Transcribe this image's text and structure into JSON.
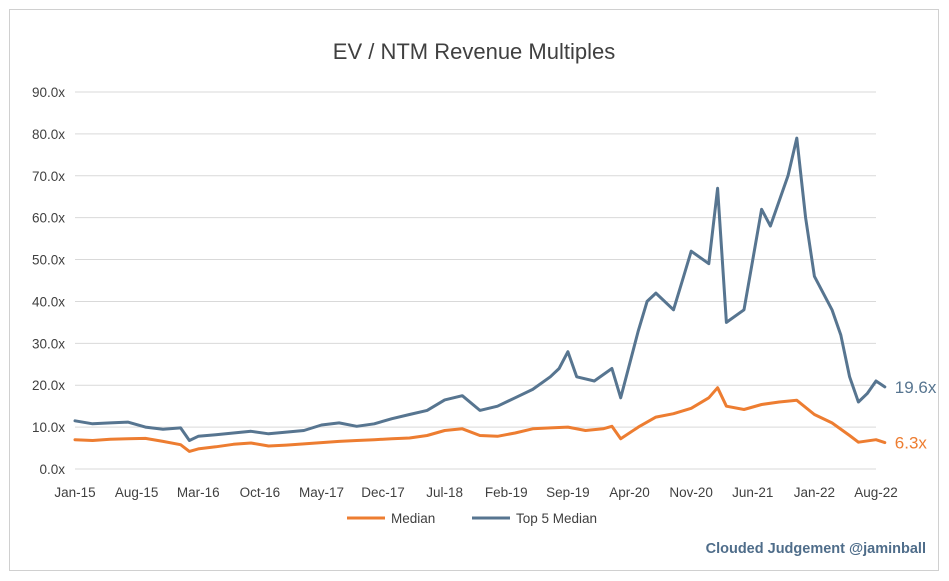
{
  "chart_data": {
    "type": "line",
    "title": "EV / NTM Revenue Multiples",
    "xlabel": "",
    "ylabel": "",
    "ylim": [
      0,
      90
    ],
    "y_ticks": [
      "0.0x",
      "10.0x",
      "20.0x",
      "30.0x",
      "40.0x",
      "50.0x",
      "60.0x",
      "70.0x",
      "80.0x",
      "90.0x"
    ],
    "x_ticks": [
      "Jan-15",
      "Aug-15",
      "Mar-16",
      "Oct-16",
      "May-17",
      "Dec-17",
      "Jul-18",
      "Feb-19",
      "Sep-19",
      "Apr-20",
      "Nov-20",
      "Jun-21",
      "Jan-22",
      "Aug-22"
    ],
    "grid": true,
    "legend_position": "bottom",
    "series": [
      {
        "name": "Median",
        "color": "#ED7D31",
        "end_label": "6.3x",
        "points": [
          [
            "2015-01",
            7.0
          ],
          [
            "2015-03",
            6.8
          ],
          [
            "2015-05",
            7.1
          ],
          [
            "2015-07",
            7.2
          ],
          [
            "2015-09",
            7.3
          ],
          [
            "2015-11",
            6.6
          ],
          [
            "2016-01",
            5.8
          ],
          [
            "2016-02",
            4.2
          ],
          [
            "2016-03",
            4.8
          ],
          [
            "2016-05",
            5.3
          ],
          [
            "2016-07",
            5.9
          ],
          [
            "2016-09",
            6.2
          ],
          [
            "2016-11",
            5.5
          ],
          [
            "2017-01",
            5.7
          ],
          [
            "2017-03",
            6.0
          ],
          [
            "2017-05",
            6.3
          ],
          [
            "2017-07",
            6.6
          ],
          [
            "2017-09",
            6.8
          ],
          [
            "2017-11",
            7.0
          ],
          [
            "2018-01",
            7.2
          ],
          [
            "2018-03",
            7.4
          ],
          [
            "2018-05",
            8.0
          ],
          [
            "2018-07",
            9.2
          ],
          [
            "2018-09",
            9.6
          ],
          [
            "2018-11",
            8.0
          ],
          [
            "2019-01",
            7.8
          ],
          [
            "2019-03",
            8.6
          ],
          [
            "2019-05",
            9.6
          ],
          [
            "2019-07",
            9.8
          ],
          [
            "2019-09",
            10.0
          ],
          [
            "2019-11",
            9.2
          ],
          [
            "2020-01",
            9.6
          ],
          [
            "2020-02",
            10.2
          ],
          [
            "2020-03",
            7.2
          ],
          [
            "2020-05",
            10.0
          ],
          [
            "2020-07",
            12.4
          ],
          [
            "2020-09",
            13.2
          ],
          [
            "2020-11",
            14.5
          ],
          [
            "2021-01",
            17.0
          ],
          [
            "2021-02",
            19.4
          ],
          [
            "2021-03",
            15.0
          ],
          [
            "2021-05",
            14.2
          ],
          [
            "2021-07",
            15.4
          ],
          [
            "2021-09",
            16.0
          ],
          [
            "2021-11",
            16.4
          ],
          [
            "2022-01",
            13.0
          ],
          [
            "2022-03",
            11.0
          ],
          [
            "2022-05",
            8.0
          ],
          [
            "2022-06",
            6.4
          ],
          [
            "2022-08",
            7.0
          ],
          [
            "2022-09",
            6.3
          ]
        ]
      },
      {
        "name": "Top 5 Median",
        "color": "#577590",
        "end_label": "19.6x",
        "points": [
          [
            "2015-01",
            11.5
          ],
          [
            "2015-03",
            10.8
          ],
          [
            "2015-05",
            11.0
          ],
          [
            "2015-07",
            11.2
          ],
          [
            "2015-09",
            10.0
          ],
          [
            "2015-11",
            9.5
          ],
          [
            "2016-01",
            9.8
          ],
          [
            "2016-02",
            6.8
          ],
          [
            "2016-03",
            7.8
          ],
          [
            "2016-05",
            8.2
          ],
          [
            "2016-07",
            8.6
          ],
          [
            "2016-09",
            9.0
          ],
          [
            "2016-11",
            8.4
          ],
          [
            "2017-01",
            8.8
          ],
          [
            "2017-03",
            9.2
          ],
          [
            "2017-05",
            10.5
          ],
          [
            "2017-07",
            11.0
          ],
          [
            "2017-09",
            10.2
          ],
          [
            "2017-11",
            10.8
          ],
          [
            "2018-01",
            12.0
          ],
          [
            "2018-03",
            13.0
          ],
          [
            "2018-05",
            14.0
          ],
          [
            "2018-07",
            16.5
          ],
          [
            "2018-09",
            17.5
          ],
          [
            "2018-11",
            14.0
          ],
          [
            "2019-01",
            15.0
          ],
          [
            "2019-03",
            17.0
          ],
          [
            "2019-05",
            19.0
          ],
          [
            "2019-07",
            22.0
          ],
          [
            "2019-08",
            24.0
          ],
          [
            "2019-09",
            28.0
          ],
          [
            "2019-10",
            22.0
          ],
          [
            "2019-12",
            21.0
          ],
          [
            "2020-02",
            24.0
          ],
          [
            "2020-03",
            17.0
          ],
          [
            "2020-05",
            33.0
          ],
          [
            "2020-06",
            40.0
          ],
          [
            "2020-07",
            42.0
          ],
          [
            "2020-09",
            38.0
          ],
          [
            "2020-10",
            45.0
          ],
          [
            "2020-11",
            52.0
          ],
          [
            "2021-01",
            49.0
          ],
          [
            "2021-02",
            67.0
          ],
          [
            "2021-03",
            35.0
          ],
          [
            "2021-05",
            38.0
          ],
          [
            "2021-06",
            50.0
          ],
          [
            "2021-07",
            62.0
          ],
          [
            "2021-08",
            58.0
          ],
          [
            "2021-10",
            70.0
          ],
          [
            "2021-11",
            79.0
          ],
          [
            "2021-12",
            60.0
          ],
          [
            "2022-01",
            46.0
          ],
          [
            "2022-03",
            38.0
          ],
          [
            "2022-04",
            32.0
          ],
          [
            "2022-05",
            22.0
          ],
          [
            "2022-06",
            16.0
          ],
          [
            "2022-07",
            18.0
          ],
          [
            "2022-08",
            21.0
          ],
          [
            "2022-09",
            19.6
          ]
        ]
      }
    ]
  },
  "credit": "Clouded Judgement @jaminball"
}
